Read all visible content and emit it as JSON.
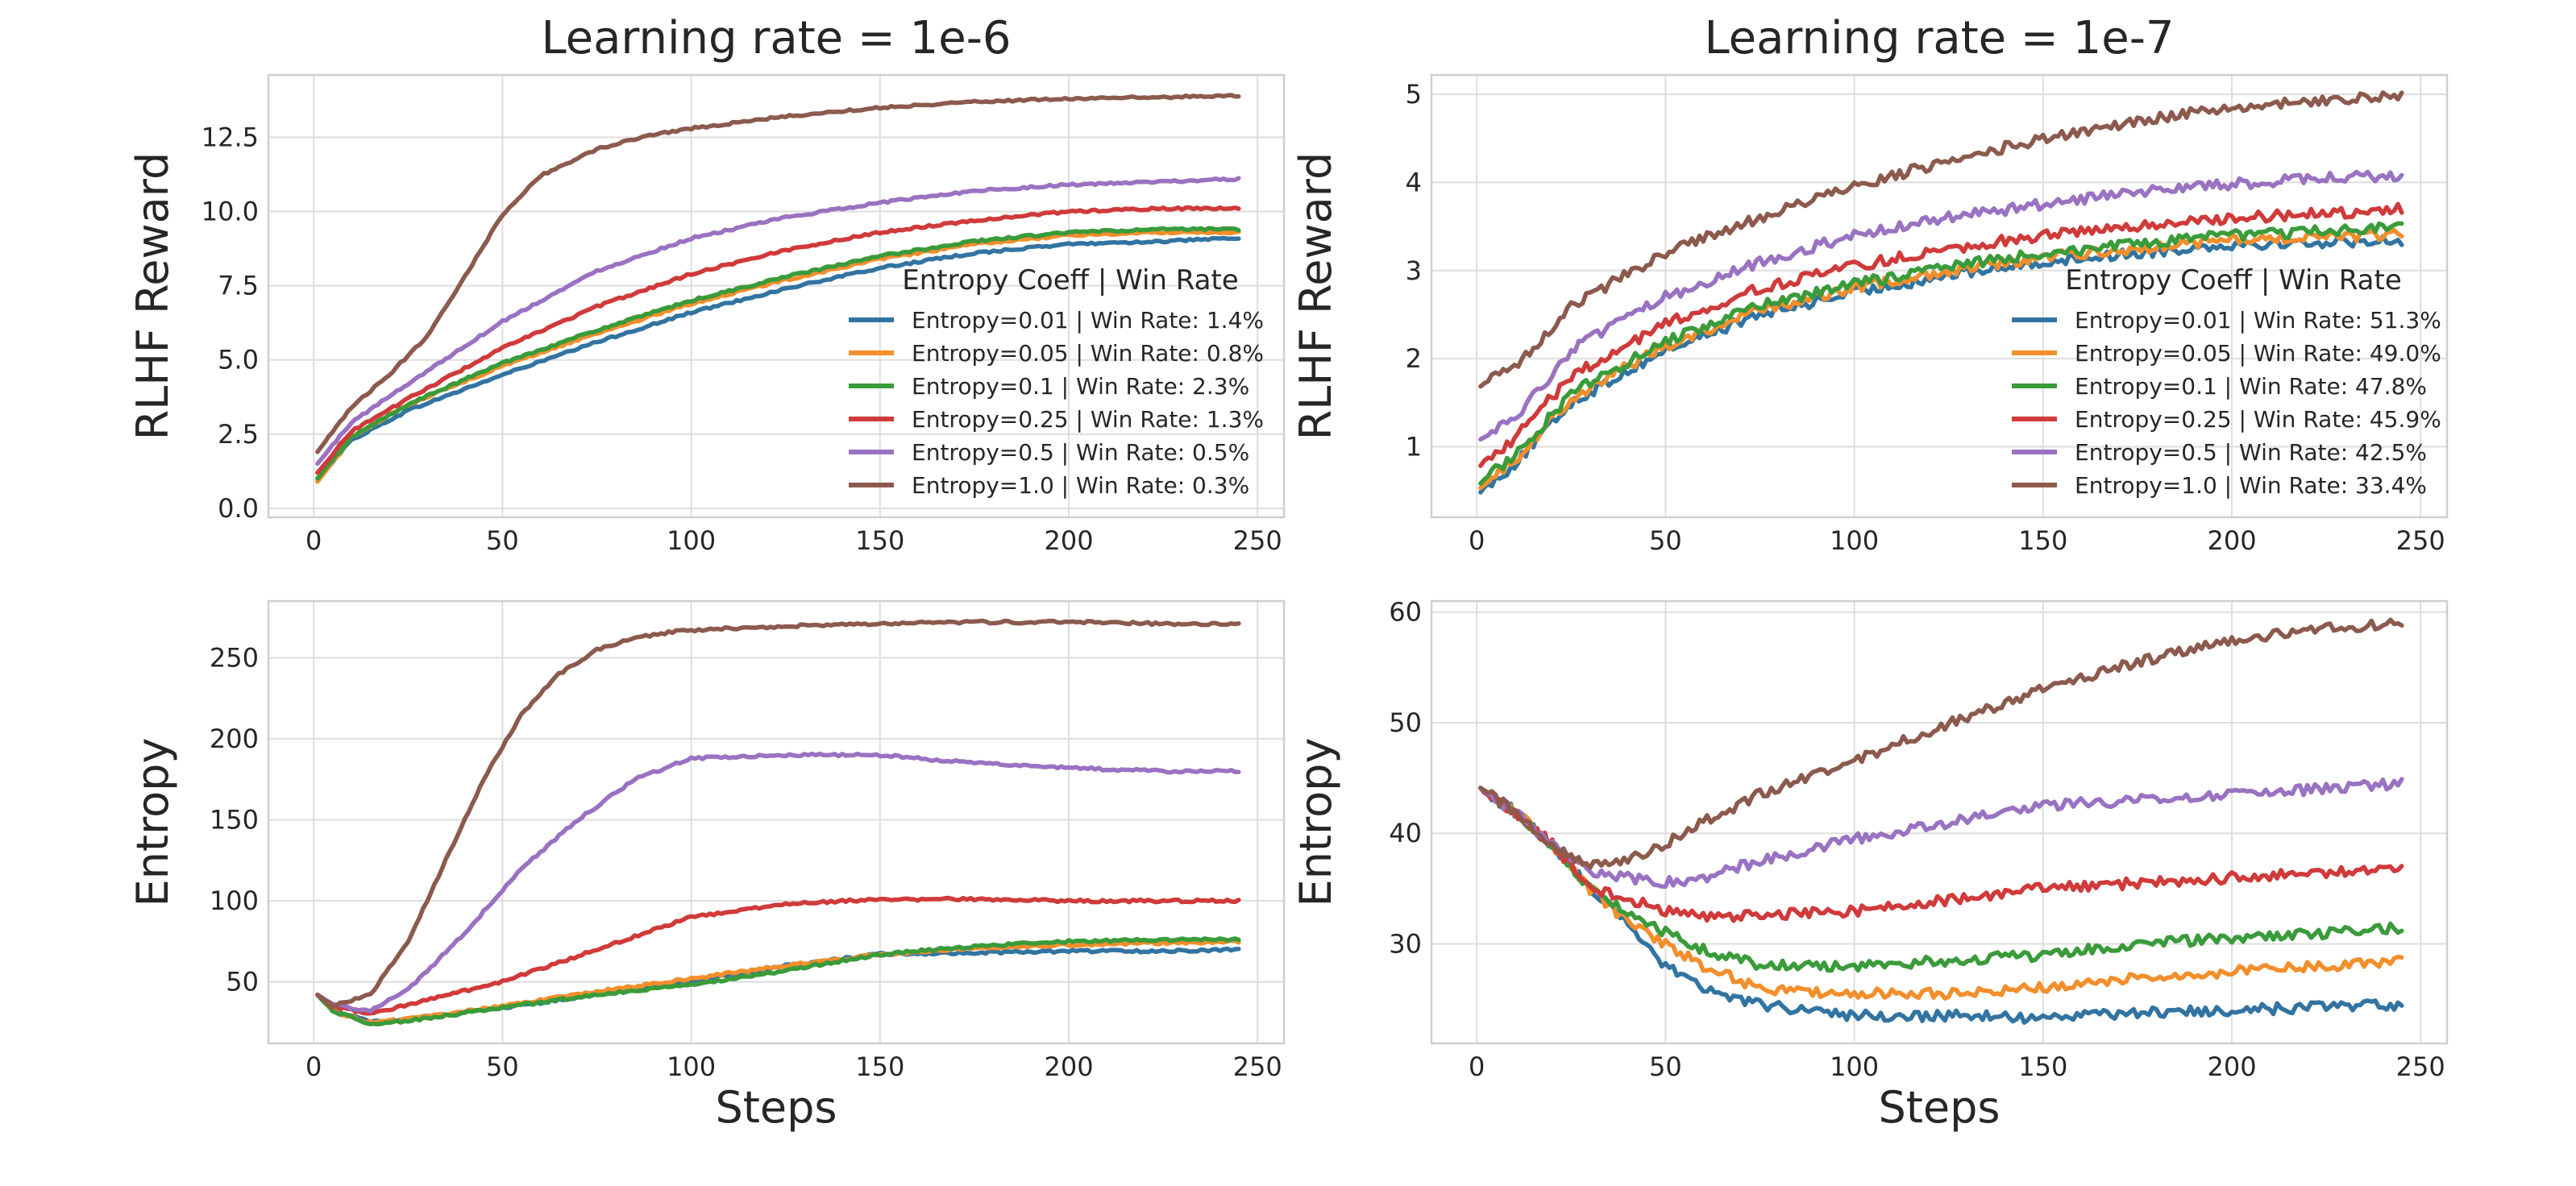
{
  "colors": [
    "#3274a1",
    "#f28e2b",
    "#3a9b3a",
    "#d03a3a",
    "#9a72c2",
    "#8c5a4d"
  ],
  "legend_title": "Entropy Coeff | Win Rate",
  "chart_data": [
    {
      "type": "line",
      "column_title": "Learning rate = 1e-6",
      "xlabel": "",
      "ylabel": "RLHF Reward",
      "xlim": [
        -12,
        257
      ],
      "ylim": [
        -0.3,
        14.6
      ],
      "xticks": [
        "0",
        "50",
        "100",
        "150",
        "200",
        "250"
      ],
      "xtick_values": [
        0,
        50,
        100,
        150,
        200,
        250
      ],
      "yticks": [
        "0.0",
        "2.5",
        "5.0",
        "7.5",
        "10.0",
        "12.5"
      ],
      "ytick_values": [
        0,
        2.5,
        5,
        7.5,
        10,
        12.5
      ],
      "grid": true,
      "legend": {
        "position": "center-right",
        "entries": [
          "Entropy=0.01 | Win Rate: 1.4%",
          "Entropy=0.05 | Win Rate: 0.8%",
          "Entropy=0.1 | Win Rate: 2.3%",
          "Entropy=0.25 | Win Rate: 1.3%",
          "Entropy=0.5 | Win Rate: 0.5%",
          "Entropy=1.0 | Win Rate: 0.3%"
        ]
      },
      "series": [
        {
          "name": "Entropy=0.01",
          "x": [
            1,
            10,
            25,
            50,
            75,
            100,
            125,
            150,
            175,
            200,
            225,
            245
          ],
          "y": [
            1.0,
            2.3,
            3.3,
            4.5,
            5.6,
            6.6,
            7.4,
            8.1,
            8.6,
            8.9,
            9.0,
            9.1
          ]
        },
        {
          "name": "Entropy=0.05",
          "x": [
            1,
            10,
            25,
            50,
            75,
            100,
            125,
            150,
            175,
            200,
            225,
            245
          ],
          "y": [
            0.9,
            2.4,
            3.5,
            4.8,
            5.9,
            6.9,
            7.7,
            8.4,
            8.9,
            9.2,
            9.3,
            9.3
          ]
        },
        {
          "name": "Entropy=0.1",
          "x": [
            1,
            10,
            25,
            50,
            75,
            100,
            125,
            150,
            175,
            200,
            225,
            245
          ],
          "y": [
            1.0,
            2.4,
            3.5,
            4.9,
            6.0,
            7.0,
            7.8,
            8.5,
            9.0,
            9.3,
            9.4,
            9.4
          ]
        },
        {
          "name": "Entropy=0.25",
          "x": [
            1,
            10,
            25,
            50,
            75,
            100,
            125,
            150,
            175,
            200,
            225,
            245
          ],
          "y": [
            1.2,
            2.6,
            3.7,
            5.4,
            6.8,
            7.9,
            8.7,
            9.3,
            9.7,
            10.0,
            10.1,
            10.1
          ]
        },
        {
          "name": "Entropy=0.5",
          "x": [
            1,
            10,
            25,
            50,
            75,
            100,
            125,
            150,
            175,
            200,
            225,
            245
          ],
          "y": [
            1.5,
            2.9,
            4.2,
            6.3,
            8.0,
            9.1,
            9.8,
            10.3,
            10.7,
            10.9,
            11.0,
            11.1
          ]
        },
        {
          "name": "Entropy=1.0",
          "x": [
            1,
            10,
            20,
            30,
            40,
            50,
            60,
            75,
            90,
            100,
            125,
            150,
            175,
            200,
            225,
            245
          ],
          "y": [
            1.9,
            3.4,
            4.5,
            5.8,
            7.8,
            9.9,
            11.2,
            12.1,
            12.6,
            12.8,
            13.2,
            13.5,
            13.7,
            13.8,
            13.85,
            13.9
          ]
        }
      ]
    },
    {
      "type": "line",
      "column_title": "Learning rate = 1e-7",
      "xlabel": "",
      "ylabel": "RLHF Reward",
      "xlim": [
        -12,
        257
      ],
      "ylim": [
        0.2,
        5.22
      ],
      "xticks": [
        "0",
        "50",
        "100",
        "150",
        "200",
        "250"
      ],
      "xtick_values": [
        0,
        50,
        100,
        150,
        200,
        250
      ],
      "yticks": [
        "1",
        "2",
        "3",
        "4",
        "5"
      ],
      "ytick_values": [
        1,
        2,
        3,
        4,
        5
      ],
      "grid": true,
      "legend": {
        "position": "center-right",
        "entries": [
          "Entropy=0.01 | Win Rate: 51.3%",
          "Entropy=0.05 | Win Rate: 49.0%",
          "Entropy=0.1 | Win Rate: 47.8%",
          "Entropy=0.25 | Win Rate: 45.9%",
          "Entropy=0.5 | Win Rate: 42.5%",
          "Entropy=1.0 | Win Rate: 33.4%"
        ]
      },
      "series": [
        {
          "name": "Entropy=0.01",
          "x": [
            1,
            10,
            25,
            50,
            75,
            100,
            125,
            150,
            175,
            200,
            225,
            245
          ],
          "y": [
            0.5,
            0.8,
            1.5,
            2.1,
            2.5,
            2.75,
            2.95,
            3.1,
            3.2,
            3.3,
            3.32,
            3.35
          ]
        },
        {
          "name": "Entropy=0.05",
          "x": [
            1,
            10,
            25,
            50,
            75,
            100,
            125,
            150,
            175,
            200,
            225,
            245
          ],
          "y": [
            0.55,
            0.85,
            1.55,
            2.15,
            2.55,
            2.8,
            3.0,
            3.15,
            3.25,
            3.35,
            3.38,
            3.4
          ]
        },
        {
          "name": "Entropy=0.1",
          "x": [
            1,
            10,
            25,
            50,
            75,
            100,
            125,
            150,
            175,
            200,
            225,
            245
          ],
          "y": [
            0.6,
            0.9,
            1.6,
            2.2,
            2.6,
            2.85,
            3.05,
            3.2,
            3.3,
            3.4,
            3.45,
            3.5
          ]
        },
        {
          "name": "Entropy=0.25",
          "x": [
            1,
            10,
            25,
            50,
            75,
            100,
            125,
            150,
            175,
            200,
            225,
            245
          ],
          "y": [
            0.8,
            1.1,
            1.8,
            2.4,
            2.8,
            3.05,
            3.25,
            3.4,
            3.5,
            3.6,
            3.65,
            3.7
          ]
        },
        {
          "name": "Entropy=0.5",
          "x": [
            1,
            10,
            25,
            50,
            75,
            100,
            125,
            150,
            175,
            200,
            225,
            245
          ],
          "y": [
            1.1,
            1.3,
            2.1,
            2.7,
            3.1,
            3.4,
            3.6,
            3.75,
            3.9,
            3.98,
            4.05,
            4.08
          ]
        },
        {
          "name": "Entropy=1.0",
          "x": [
            1,
            10,
            25,
            50,
            75,
            100,
            125,
            150,
            175,
            200,
            225,
            245
          ],
          "y": [
            1.7,
            1.9,
            2.6,
            3.2,
            3.6,
            3.95,
            4.25,
            4.5,
            4.7,
            4.85,
            4.93,
            4.97
          ]
        }
      ]
    },
    {
      "type": "line",
      "column_title": "",
      "xlabel": "Steps",
      "ylabel": "Entropy",
      "xlim": [
        -12,
        257
      ],
      "ylim": [
        12,
        285
      ],
      "xticks": [
        "0",
        "50",
        "100",
        "150",
        "200",
        "250"
      ],
      "xtick_values": [
        0,
        50,
        100,
        150,
        200,
        250
      ],
      "yticks": [
        "50",
        "100",
        "150",
        "200",
        "250"
      ],
      "ytick_values": [
        50,
        100,
        150,
        200,
        250
      ],
      "grid": true,
      "series": [
        {
          "name": "Entropy=0.01",
          "x": [
            1,
            5,
            15,
            25,
            50,
            75,
            100,
            125,
            150,
            175,
            200,
            225,
            245
          ],
          "y": [
            42,
            33,
            25,
            27,
            34,
            42,
            50,
            60,
            67,
            68,
            69,
            69,
            70
          ]
        },
        {
          "name": "Entropy=0.05",
          "x": [
            1,
            5,
            15,
            25,
            50,
            75,
            100,
            125,
            150,
            175,
            200,
            225,
            245
          ],
          "y": [
            42,
            32,
            25,
            27,
            35,
            44,
            52,
            60,
            67,
            71,
            73,
            74,
            75
          ]
        },
        {
          "name": "Entropy=0.1",
          "x": [
            1,
            5,
            15,
            25,
            50,
            75,
            100,
            125,
            150,
            175,
            200,
            225,
            245
          ],
          "y": [
            42,
            32,
            24,
            26,
            34,
            42,
            48,
            57,
            67,
            72,
            75,
            76,
            76
          ]
        },
        {
          "name": "Entropy=0.25",
          "x": [
            1,
            5,
            15,
            25,
            50,
            75,
            100,
            125,
            150,
            175,
            200,
            225,
            245
          ],
          "y": [
            42,
            35,
            30,
            36,
            50,
            70,
            90,
            98,
            101,
            101,
            100,
            100,
            100
          ]
        },
        {
          "name": "Entropy=0.5",
          "x": [
            1,
            5,
            15,
            25,
            40,
            55,
            70,
            85,
            100,
            125,
            150,
            175,
            200,
            225,
            245
          ],
          "y": [
            42,
            36,
            32,
            45,
            80,
            120,
            150,
            175,
            188,
            190,
            190,
            185,
            182,
            180,
            180
          ]
        },
        {
          "name": "Entropy=1.0",
          "x": [
            1,
            5,
            15,
            25,
            35,
            45,
            55,
            65,
            75,
            85,
            95,
            110,
            130,
            150,
            175,
            200,
            225,
            245
          ],
          "y": [
            42,
            35,
            42,
            75,
            125,
            175,
            215,
            240,
            255,
            262,
            266,
            268,
            270,
            271,
            272,
            272,
            271,
            271
          ]
        }
      ]
    },
    {
      "type": "line",
      "column_title": "",
      "xlabel": "Steps",
      "ylabel": "Entropy",
      "xlim": [
        -12,
        257
      ],
      "ylim": [
        21,
        61
      ],
      "xticks": [
        "0",
        "50",
        "100",
        "150",
        "200",
        "250"
      ],
      "xtick_values": [
        0,
        50,
        100,
        150,
        200,
        250
      ],
      "yticks": [
        "30",
        "40",
        "50",
        "60"
      ],
      "ytick_values": [
        30,
        40,
        50,
        60
      ],
      "grid": true,
      "series": [
        {
          "name": "Entropy=0.01",
          "x": [
            1,
            10,
            20,
            30,
            40,
            50,
            60,
            75,
            100,
            125,
            150,
            175,
            200,
            225,
            245
          ],
          "y": [
            44,
            42,
            39,
            35,
            32,
            28,
            26,
            24.5,
            23.5,
            23.5,
            23.3,
            23.8,
            24.0,
            24.3,
            24.5
          ]
        },
        {
          "name": "Entropy=0.05",
          "x": [
            1,
            10,
            20,
            30,
            40,
            50,
            60,
            75,
            100,
            125,
            150,
            175,
            200,
            225,
            245
          ],
          "y": [
            44,
            42,
            39,
            35,
            32,
            30,
            28,
            26,
            25.5,
            25.5,
            26,
            27,
            27.5,
            28,
            28.5
          ]
        },
        {
          "name": "Entropy=0.1",
          "x": [
            1,
            10,
            20,
            30,
            40,
            50,
            60,
            75,
            100,
            125,
            150,
            175,
            200,
            225,
            245
          ],
          "y": [
            44,
            42,
            39,
            35,
            33,
            31,
            29.5,
            28,
            28,
            28.5,
            29,
            30,
            30.5,
            31,
            31.5
          ]
        },
        {
          "name": "Entropy=0.25",
          "x": [
            1,
            10,
            20,
            30,
            40,
            50,
            60,
            75,
            100,
            125,
            150,
            175,
            200,
            225,
            245
          ],
          "y": [
            44,
            42,
            39,
            35,
            34,
            33,
            32.5,
            32.5,
            33,
            34,
            35,
            35.5,
            36,
            36.5,
            37
          ]
        },
        {
          "name": "Entropy=0.5",
          "x": [
            1,
            10,
            20,
            30,
            40,
            50,
            60,
            75,
            100,
            125,
            150,
            175,
            200,
            225,
            245
          ],
          "y": [
            44,
            42,
            39,
            36.5,
            36,
            35.5,
            36,
            37.5,
            39.5,
            41,
            42.5,
            43,
            43.5,
            44,
            44.5
          ]
        },
        {
          "name": "Entropy=1.0",
          "x": [
            1,
            10,
            20,
            30,
            40,
            50,
            60,
            75,
            100,
            125,
            150,
            175,
            200,
            225,
            245
          ],
          "y": [
            44,
            42,
            39,
            37,
            37.5,
            39,
            41,
            43.5,
            46.5,
            50,
            53,
            55.5,
            57.5,
            58.5,
            59
          ]
        }
      ]
    }
  ]
}
